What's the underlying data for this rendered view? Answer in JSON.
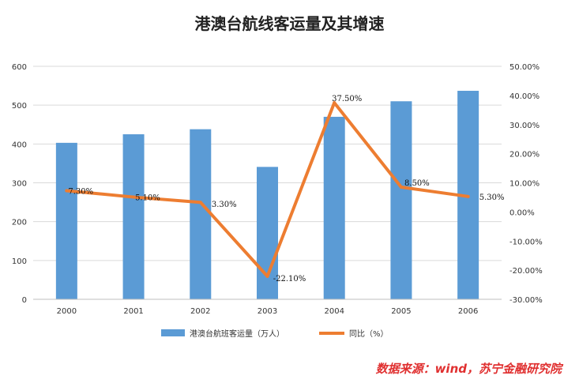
{
  "chart_data": {
    "type": "bar",
    "title": "港澳台航线客运量及其增速",
    "categories": [
      "2000",
      "2001",
      "2002",
      "2003",
      "2004",
      "2005",
      "2006"
    ],
    "series": [
      {
        "name": "港澳台航班客运量（万人）",
        "type": "bar",
        "axis": "left",
        "color": "#5b9bd5",
        "values": [
          403,
          425,
          438,
          341,
          470,
          510,
          537
        ]
      },
      {
        "name": "同比（%）",
        "type": "line",
        "axis": "right",
        "color": "#ed7d31",
        "values": [
          7.3,
          5.1,
          3.3,
          -22.1,
          37.5,
          8.5,
          5.3
        ],
        "labels": [
          "7.30%",
          "5.10%",
          "3.30%",
          "-22.10%",
          "37.50%",
          "8.50%",
          "5.30%"
        ]
      }
    ],
    "ylim_left": [
      0,
      600
    ],
    "yticks_left": [
      "0",
      "100",
      "200",
      "300",
      "400",
      "500",
      "600"
    ],
    "ylim_right": [
      -30,
      50
    ],
    "yticks_right": [
      "-30.00%",
      "-20.00%",
      "-10.00%",
      "0.00%",
      "10.00%",
      "20.00%",
      "30.00%",
      "40.00%",
      "50.00%"
    ],
    "grid": true,
    "legend_position": "bottom"
  },
  "source_note": "数据来源：wind，苏宁金融研究院"
}
